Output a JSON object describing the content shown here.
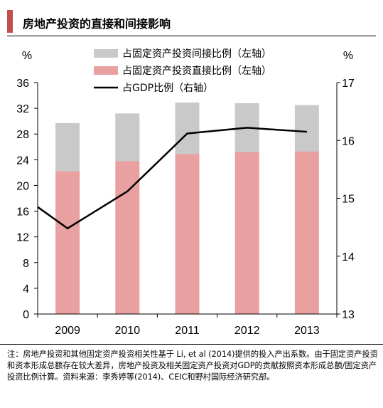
{
  "title": "房地产投资的直接和间接影响",
  "note": "注：房地产投资和其他固定资产投资相关性基于 Li, et al (2014)提供的投入产出系数。由于固定资产投资和资本形成总额存在较大差异，房地产投资及相关固定资产投资对GDP的贡献按照资本形成总额/固定资产投资比例计算。资料来源：李秀婷等(2014)、CEIC和野村国际经济研究部。",
  "colors": {
    "direct": "#e8a0a0",
    "indirect": "#c9c9c9",
    "line": "#000000",
    "title_mark": "#c0504d"
  },
  "chart_data": {
    "type": "bar",
    "categories": [
      "2009",
      "2010",
      "2011",
      "2012",
      "2013"
    ],
    "series": [
      {
        "name": "占固定资产投资直接比例（左轴）",
        "kind": "stacked-bar",
        "axis": "left",
        "values": [
          22.2,
          23.8,
          24.9,
          25.2,
          25.3
        ]
      },
      {
        "name": "占固定资产投资间接比例（左轴）",
        "kind": "stacked-bar",
        "axis": "left",
        "values": [
          7.5,
          7.4,
          8.0,
          7.6,
          7.2
        ]
      },
      {
        "name": "占GDP比例（右轴）",
        "kind": "line",
        "axis": "right",
        "values": [
          14.48,
          15.12,
          16.12,
          16.22,
          16.15
        ]
      }
    ],
    "line_start_value": 14.85,
    "left_axis": {
      "unit": "%",
      "ylim": [
        0,
        36
      ],
      "ticks": [
        0,
        4,
        8,
        12,
        16,
        20,
        24,
        28,
        32,
        36
      ]
    },
    "right_axis": {
      "unit": "%",
      "ylim": [
        13,
        17
      ],
      "ticks": [
        13,
        14,
        15,
        16,
        17
      ]
    },
    "legend_order": [
      1,
      0,
      2
    ],
    "legend_position": "top-left",
    "grid": false
  }
}
